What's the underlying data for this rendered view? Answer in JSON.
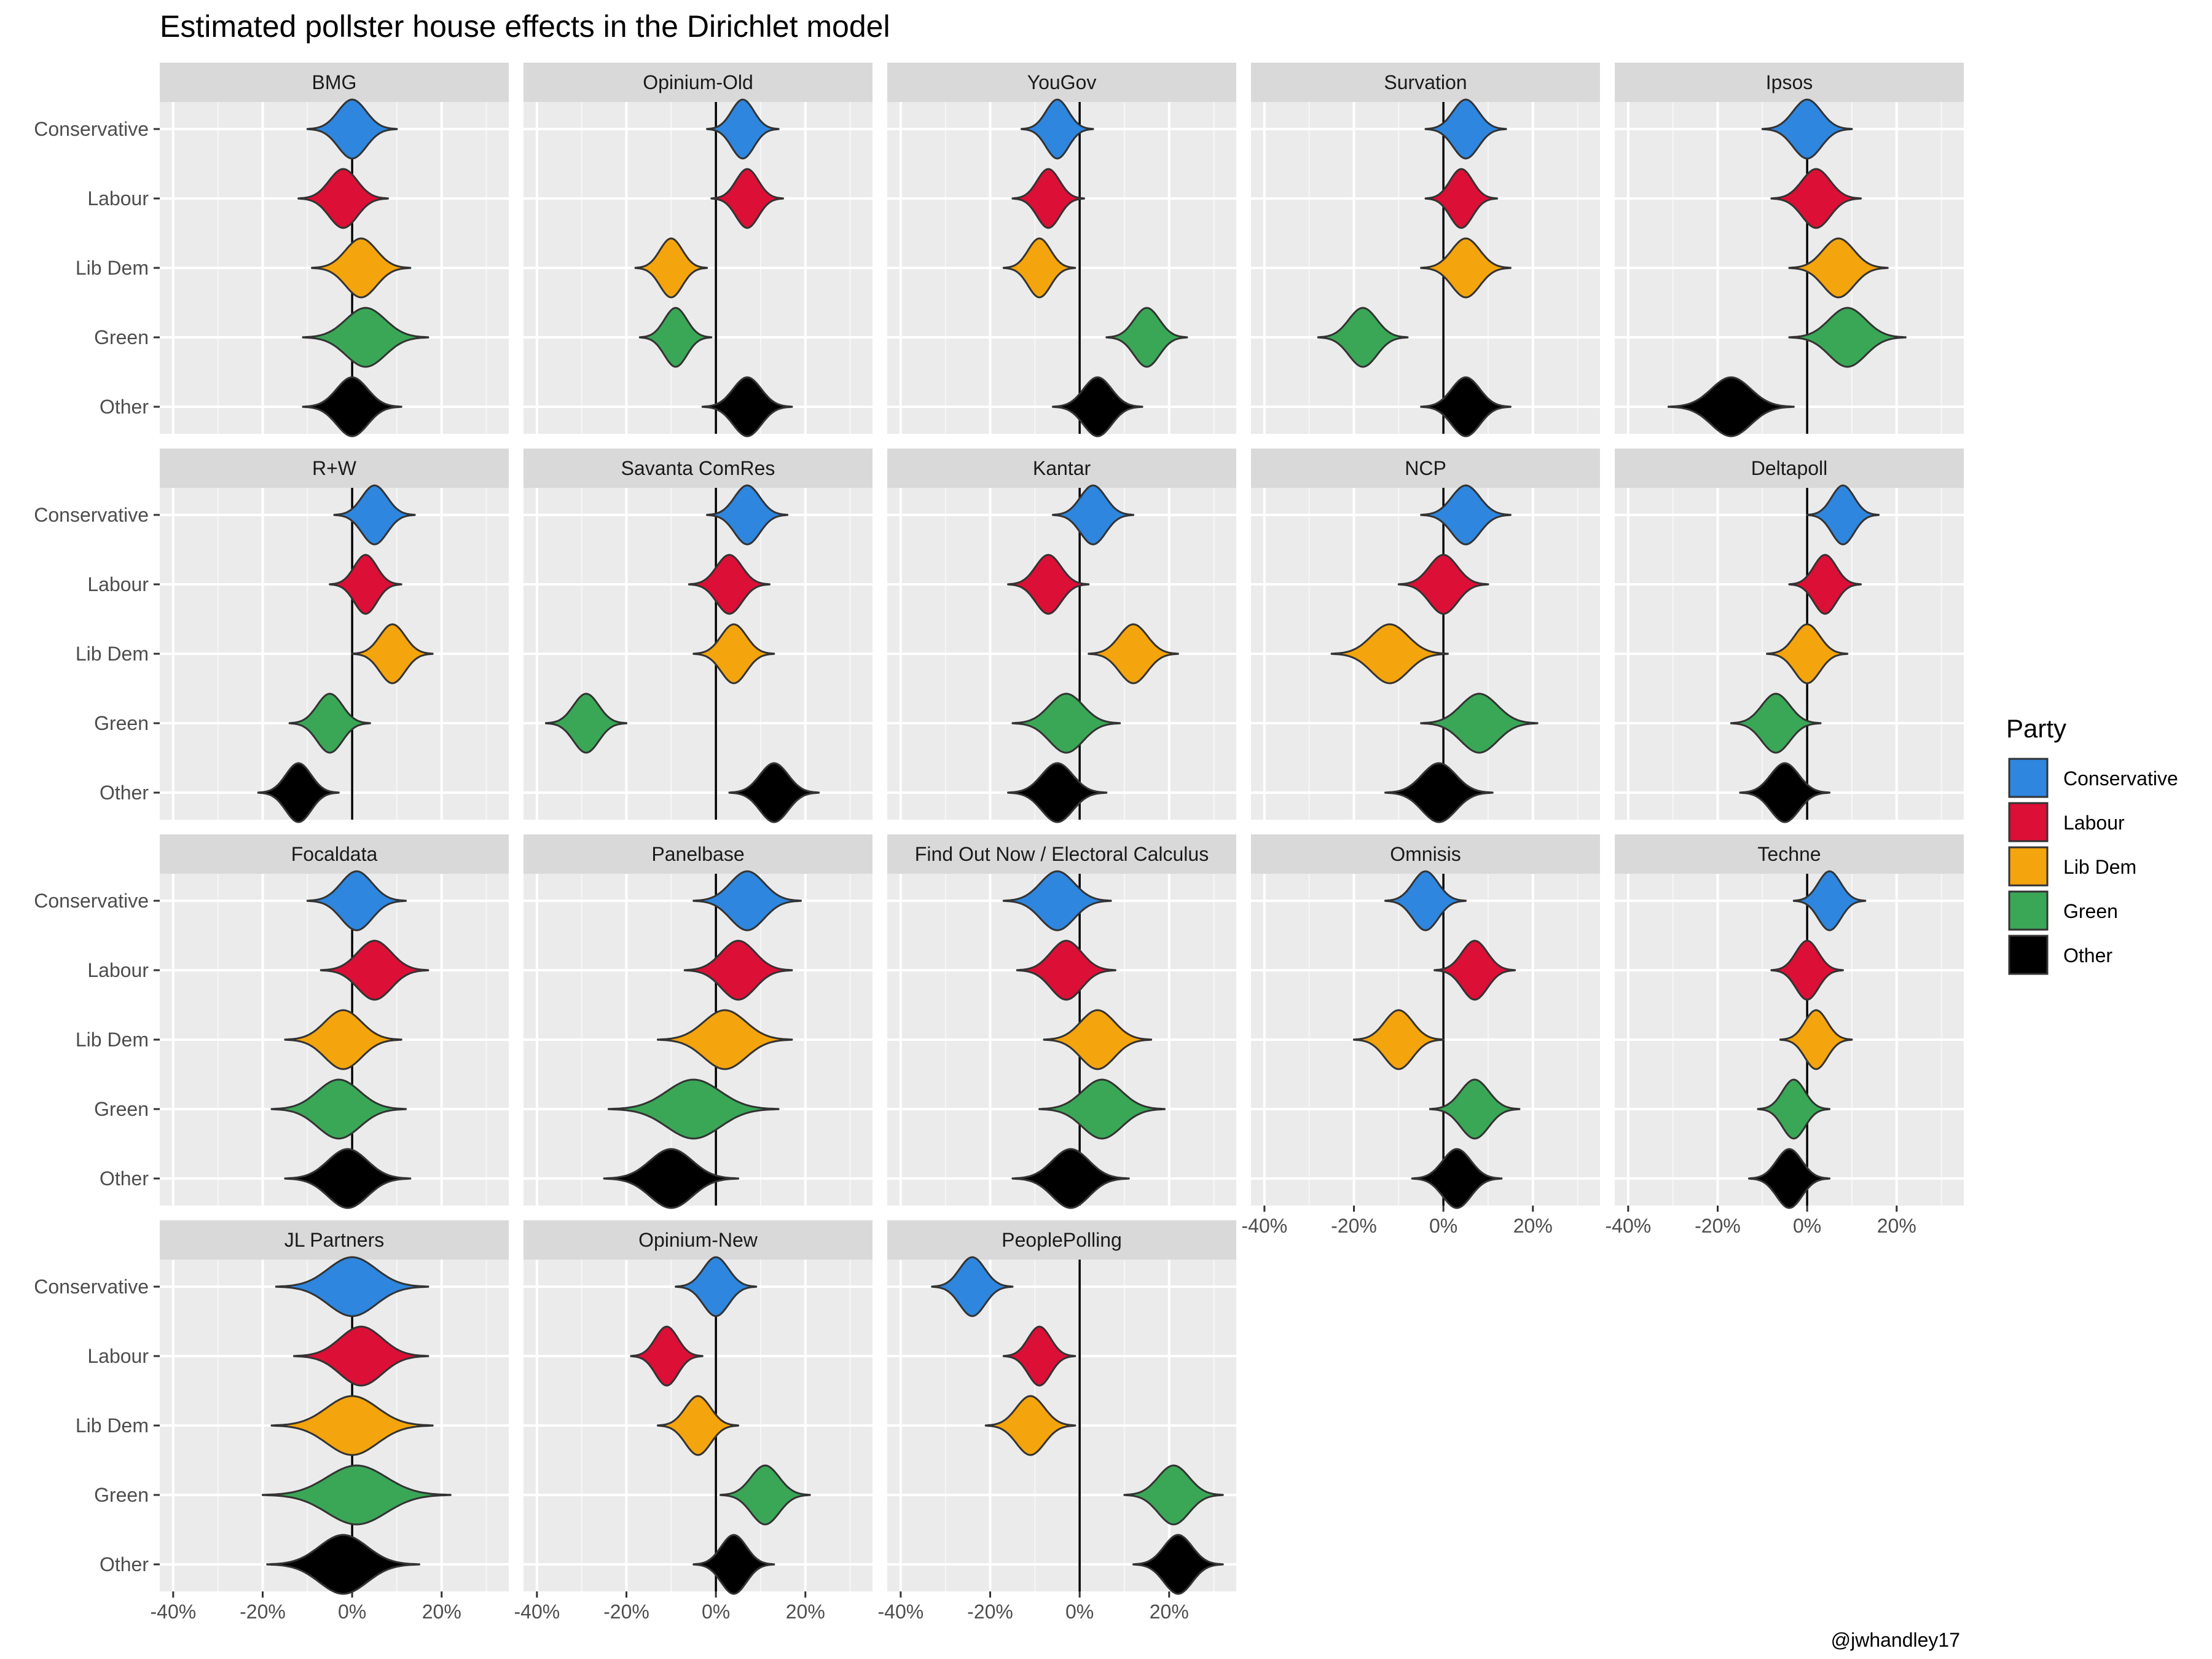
{
  "chart_data": {
    "type": "violin",
    "title": "Estimated pollster house effects in the Dirichlet model",
    "caption": "@jwhandley17",
    "parties": [
      "Conservative",
      "Labour",
      "Lib Dem",
      "Green",
      "Other"
    ],
    "colors": {
      "Conservative": "#2E86DE",
      "Labour": "#DC0F36",
      "Lib Dem": "#F4A40C",
      "Green": "#3AA757",
      "Other": "#000000"
    },
    "x_ticks": [
      "-40%",
      "-20%",
      "0%",
      "20%"
    ],
    "x_tick_values": [
      -40,
      -20,
      0,
      20
    ],
    "xlim": [
      -43,
      35
    ],
    "legend": {
      "title": "Party",
      "position": "right"
    },
    "panels": [
      {
        "name": "BMG",
        "effects": [
          {
            "party": "Conservative",
            "center": 0,
            "spread": 10
          },
          {
            "party": "Labour",
            "center": -2,
            "spread": 10
          },
          {
            "party": "Lib Dem",
            "center": 2,
            "spread": 11
          },
          {
            "party": "Green",
            "center": 3,
            "spread": 14
          },
          {
            "party": "Other",
            "center": 0,
            "spread": 11
          }
        ]
      },
      {
        "name": "Opinium-Old",
        "effects": [
          {
            "party": "Conservative",
            "center": 6,
            "spread": 8
          },
          {
            "party": "Labour",
            "center": 7,
            "spread": 8
          },
          {
            "party": "Lib Dem",
            "center": -10,
            "spread": 8
          },
          {
            "party": "Green",
            "center": -9,
            "spread": 8
          },
          {
            "party": "Other",
            "center": 7,
            "spread": 10
          }
        ]
      },
      {
        "name": "YouGov",
        "effects": [
          {
            "party": "Conservative",
            "center": -5,
            "spread": 8
          },
          {
            "party": "Labour",
            "center": -7,
            "spread": 8
          },
          {
            "party": "Lib Dem",
            "center": -9,
            "spread": 8
          },
          {
            "party": "Green",
            "center": 15,
            "spread": 9
          },
          {
            "party": "Other",
            "center": 4,
            "spread": 10
          }
        ]
      },
      {
        "name": "Survation",
        "effects": [
          {
            "party": "Conservative",
            "center": 5,
            "spread": 9
          },
          {
            "party": "Labour",
            "center": 4,
            "spread": 8
          },
          {
            "party": "Lib Dem",
            "center": 5,
            "spread": 10
          },
          {
            "party": "Green",
            "center": -18,
            "spread": 10
          },
          {
            "party": "Other",
            "center": 5,
            "spread": 10
          }
        ]
      },
      {
        "name": "Ipsos",
        "effects": [
          {
            "party": "Conservative",
            "center": 0,
            "spread": 10
          },
          {
            "party": "Labour",
            "center": 2,
            "spread": 10
          },
          {
            "party": "Lib Dem",
            "center": 7,
            "spread": 11
          },
          {
            "party": "Green",
            "center": 9,
            "spread": 13
          },
          {
            "party": "Other",
            "center": -17,
            "spread": 14
          }
        ]
      },
      {
        "name": "R+W",
        "effects": [
          {
            "party": "Conservative",
            "center": 5,
            "spread": 9
          },
          {
            "party": "Labour",
            "center": 3,
            "spread": 8
          },
          {
            "party": "Lib Dem",
            "center": 9,
            "spread": 9
          },
          {
            "party": "Green",
            "center": -5,
            "spread": 9
          },
          {
            "party": "Other",
            "center": -12,
            "spread": 9
          }
        ]
      },
      {
        "name": "Savanta ComRes",
        "effects": [
          {
            "party": "Conservative",
            "center": 7,
            "spread": 9
          },
          {
            "party": "Labour",
            "center": 3,
            "spread": 9
          },
          {
            "party": "Lib Dem",
            "center": 4,
            "spread": 9
          },
          {
            "party": "Green",
            "center": -29,
            "spread": 9
          },
          {
            "party": "Other",
            "center": 13,
            "spread": 10
          }
        ]
      },
      {
        "name": "Kantar",
        "effects": [
          {
            "party": "Conservative",
            "center": 3,
            "spread": 9
          },
          {
            "party": "Labour",
            "center": -7,
            "spread": 9
          },
          {
            "party": "Lib Dem",
            "center": 12,
            "spread": 10
          },
          {
            "party": "Green",
            "center": -3,
            "spread": 12
          },
          {
            "party": "Other",
            "center": -5,
            "spread": 11
          }
        ]
      },
      {
        "name": "NCP",
        "effects": [
          {
            "party": "Conservative",
            "center": 5,
            "spread": 10
          },
          {
            "party": "Labour",
            "center": 0,
            "spread": 10
          },
          {
            "party": "Lib Dem",
            "center": -12,
            "spread": 13
          },
          {
            "party": "Green",
            "center": 8,
            "spread": 13
          },
          {
            "party": "Other",
            "center": -1,
            "spread": 12
          }
        ]
      },
      {
        "name": "Deltapoll",
        "effects": [
          {
            "party": "Conservative",
            "center": 8,
            "spread": 8
          },
          {
            "party": "Labour",
            "center": 4,
            "spread": 8
          },
          {
            "party": "Lib Dem",
            "center": 0,
            "spread": 9
          },
          {
            "party": "Green",
            "center": -7,
            "spread": 10
          },
          {
            "party": "Other",
            "center": -5,
            "spread": 10
          }
        ]
      },
      {
        "name": "Focaldata",
        "effects": [
          {
            "party": "Conservative",
            "center": 1,
            "spread": 11
          },
          {
            "party": "Labour",
            "center": 5,
            "spread": 12
          },
          {
            "party": "Lib Dem",
            "center": -2,
            "spread": 13
          },
          {
            "party": "Green",
            "center": -3,
            "spread": 15
          },
          {
            "party": "Other",
            "center": -1,
            "spread": 14
          }
        ]
      },
      {
        "name": "Panelbase",
        "effects": [
          {
            "party": "Conservative",
            "center": 7,
            "spread": 12
          },
          {
            "party": "Labour",
            "center": 5,
            "spread": 12
          },
          {
            "party": "Lib Dem",
            "center": 2,
            "spread": 15
          },
          {
            "party": "Green",
            "center": -5,
            "spread": 19
          },
          {
            "party": "Other",
            "center": -10,
            "spread": 15
          }
        ]
      },
      {
        "name": "Find Out Now / Electoral Calculus",
        "effects": [
          {
            "party": "Conservative",
            "center": -5,
            "spread": 12
          },
          {
            "party": "Labour",
            "center": -3,
            "spread": 11
          },
          {
            "party": "Lib Dem",
            "center": 4,
            "spread": 12
          },
          {
            "party": "Green",
            "center": 5,
            "spread": 14
          },
          {
            "party": "Other",
            "center": -2,
            "spread": 13
          }
        ]
      },
      {
        "name": "Omnisis",
        "effects": [
          {
            "party": "Conservative",
            "center": -4,
            "spread": 9
          },
          {
            "party": "Labour",
            "center": 7,
            "spread": 9
          },
          {
            "party": "Lib Dem",
            "center": -10,
            "spread": 10
          },
          {
            "party": "Green",
            "center": 7,
            "spread": 10
          },
          {
            "party": "Other",
            "center": 3,
            "spread": 10
          }
        ]
      },
      {
        "name": "Techne",
        "effects": [
          {
            "party": "Conservative",
            "center": 5,
            "spread": 8
          },
          {
            "party": "Labour",
            "center": 0,
            "spread": 8
          },
          {
            "party": "Lib Dem",
            "center": 2,
            "spread": 8
          },
          {
            "party": "Green",
            "center": -3,
            "spread": 8
          },
          {
            "party": "Other",
            "center": -4,
            "spread": 9
          }
        ]
      },
      {
        "name": "JL Partners",
        "effects": [
          {
            "party": "Conservative",
            "center": 0,
            "spread": 17
          },
          {
            "party": "Labour",
            "center": 2,
            "spread": 15
          },
          {
            "party": "Lib Dem",
            "center": 0,
            "spread": 18
          },
          {
            "party": "Green",
            "center": 1,
            "spread": 21
          },
          {
            "party": "Other",
            "center": -2,
            "spread": 17
          }
        ]
      },
      {
        "name": "Opinium-New",
        "effects": [
          {
            "party": "Conservative",
            "center": 0,
            "spread": 9
          },
          {
            "party": "Labour",
            "center": -11,
            "spread": 8
          },
          {
            "party": "Lib Dem",
            "center": -4,
            "spread": 9
          },
          {
            "party": "Green",
            "center": 11,
            "spread": 10
          },
          {
            "party": "Other",
            "center": 4,
            "spread": 9
          }
        ]
      },
      {
        "name": "PeoplePolling",
        "effects": [
          {
            "party": "Conservative",
            "center": -24,
            "spread": 9
          },
          {
            "party": "Labour",
            "center": -9,
            "spread": 8
          },
          {
            "party": "Lib Dem",
            "center": -11,
            "spread": 10
          },
          {
            "party": "Green",
            "center": 21,
            "spread": 11
          },
          {
            "party": "Other",
            "center": 22,
            "spread": 10
          }
        ]
      }
    ]
  }
}
